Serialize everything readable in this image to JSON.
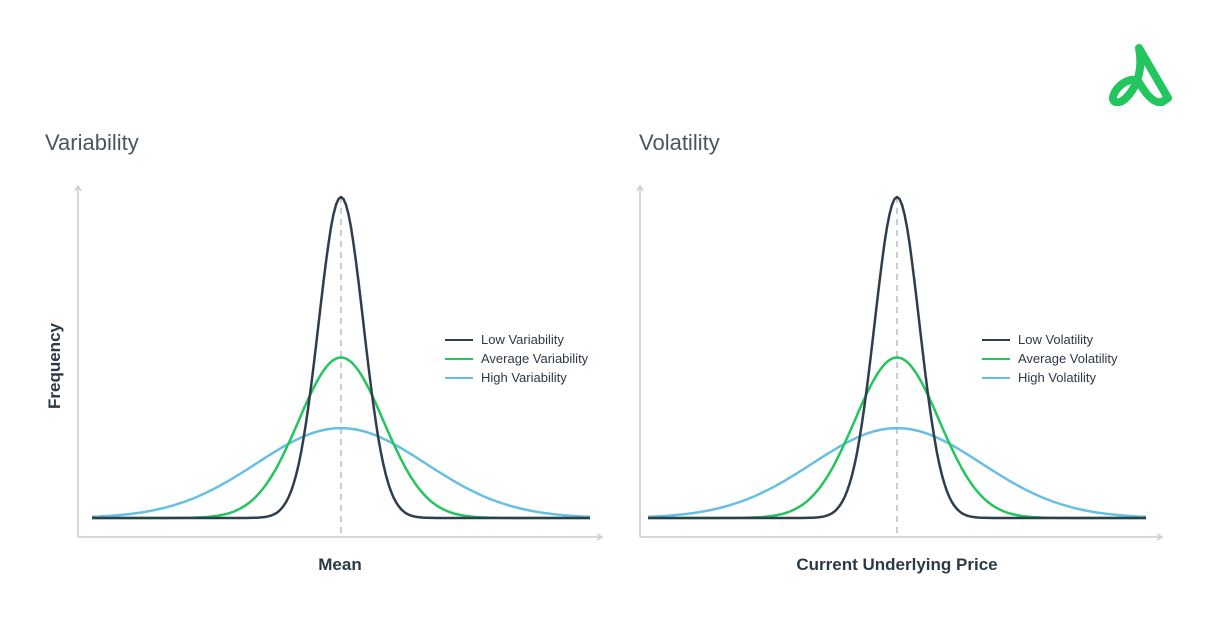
{
  "logo": {
    "icon": "logo-a-icon",
    "color": "#22c55e"
  },
  "chart_data": [
    {
      "type": "line",
      "title": "Variability",
      "xlabel": "Mean",
      "ylabel": "Frequency",
      "legend_position": "right",
      "mean_marker": "dashed",
      "series": [
        {
          "name": "Low Variability",
          "color": "#2e3e4e",
          "peak": 1.0,
          "sd": 0.09
        },
        {
          "name": "Average Variability",
          "color": "#22c55e",
          "peak": 0.5,
          "sd": 0.17
        },
        {
          "name": "High Variability",
          "color": "#67c0e3",
          "peak": 0.28,
          "sd": 0.34
        }
      ]
    },
    {
      "type": "line",
      "title": "Volatility",
      "xlabel": "Current Underlying Price",
      "ylabel": "",
      "legend_position": "right",
      "mean_marker": "dashed",
      "series": [
        {
          "name": "Low Volatility",
          "color": "#2e3e4e",
          "peak": 1.0,
          "sd": 0.09
        },
        {
          "name": "Average Volatility",
          "color": "#22c55e",
          "peak": 0.5,
          "sd": 0.17
        },
        {
          "name": "High Volatility",
          "color": "#67c0e3",
          "peak": 0.28,
          "sd": 0.34
        }
      ]
    }
  ]
}
